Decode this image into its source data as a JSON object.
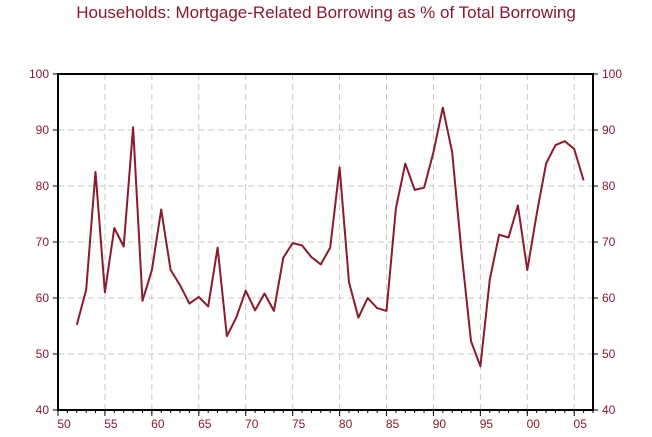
{
  "chart_data": {
    "type": "line",
    "title": "Households: Mortgage-Related Borrowing as % of Total Borrowing",
    "xlabel": "",
    "ylabel": "",
    "xlim": [
      1950,
      2007
    ],
    "ylim": [
      40,
      100
    ],
    "y_ticks": [
      40,
      50,
      60,
      70,
      80,
      90,
      100
    ],
    "x_ticks": [
      {
        "year": 1950,
        "label": "50"
      },
      {
        "year": 1955,
        "label": "55"
      },
      {
        "year": 1960,
        "label": "60"
      },
      {
        "year": 1965,
        "label": "65"
      },
      {
        "year": 1970,
        "label": "70"
      },
      {
        "year": 1975,
        "label": "75"
      },
      {
        "year": 1980,
        "label": "80"
      },
      {
        "year": 1985,
        "label": "85"
      },
      {
        "year": 1990,
        "label": "90"
      },
      {
        "year": 1995,
        "label": "95"
      },
      {
        "year": 2000,
        "label": "00"
      },
      {
        "year": 2005,
        "label": "05"
      }
    ],
    "grid": true,
    "line_color": "#8b1a2e",
    "axis_label_color": "#8b1a2e",
    "series": [
      {
        "x": [
          1952,
          1953,
          1954,
          1955,
          1956,
          1957,
          1958,
          1959,
          1960,
          1961,
          1962,
          1963,
          1964,
          1965,
          1966,
          1967,
          1968,
          1969,
          1970,
          1971,
          1972,
          1973,
          1974,
          1975,
          1976,
          1977,
          1978,
          1979,
          1980,
          1981,
          1982,
          1983,
          1984,
          1985,
          1986,
          1987,
          1988,
          1989,
          1990,
          1991,
          1992,
          1993,
          1994,
          1995,
          1996,
          1997,
          1998,
          1999,
          2000,
          2001,
          2002,
          2003,
          2004,
          2005,
          2006
        ],
        "values": [
          55.2,
          61.5,
          82.5,
          61.0,
          72.5,
          69.2,
          90.5,
          59.5,
          65.0,
          75.8,
          65.0,
          62.3,
          59.0,
          60.2,
          58.5,
          69.0,
          53.2,
          56.5,
          61.3,
          57.8,
          60.8,
          57.7,
          67.2,
          69.8,
          69.4,
          67.3,
          66.0,
          69.0,
          83.3,
          62.8,
          56.5,
          60.0,
          58.2,
          57.7,
          76.0,
          84.0,
          79.3,
          79.7,
          86.0,
          94.0,
          86.0,
          68.0,
          52.3,
          47.8,
          63.3,
          71.3,
          70.8,
          76.5,
          65.0,
          75.0,
          84.0,
          87.3,
          88.0,
          86.6,
          81.0
        ]
      }
    ]
  }
}
